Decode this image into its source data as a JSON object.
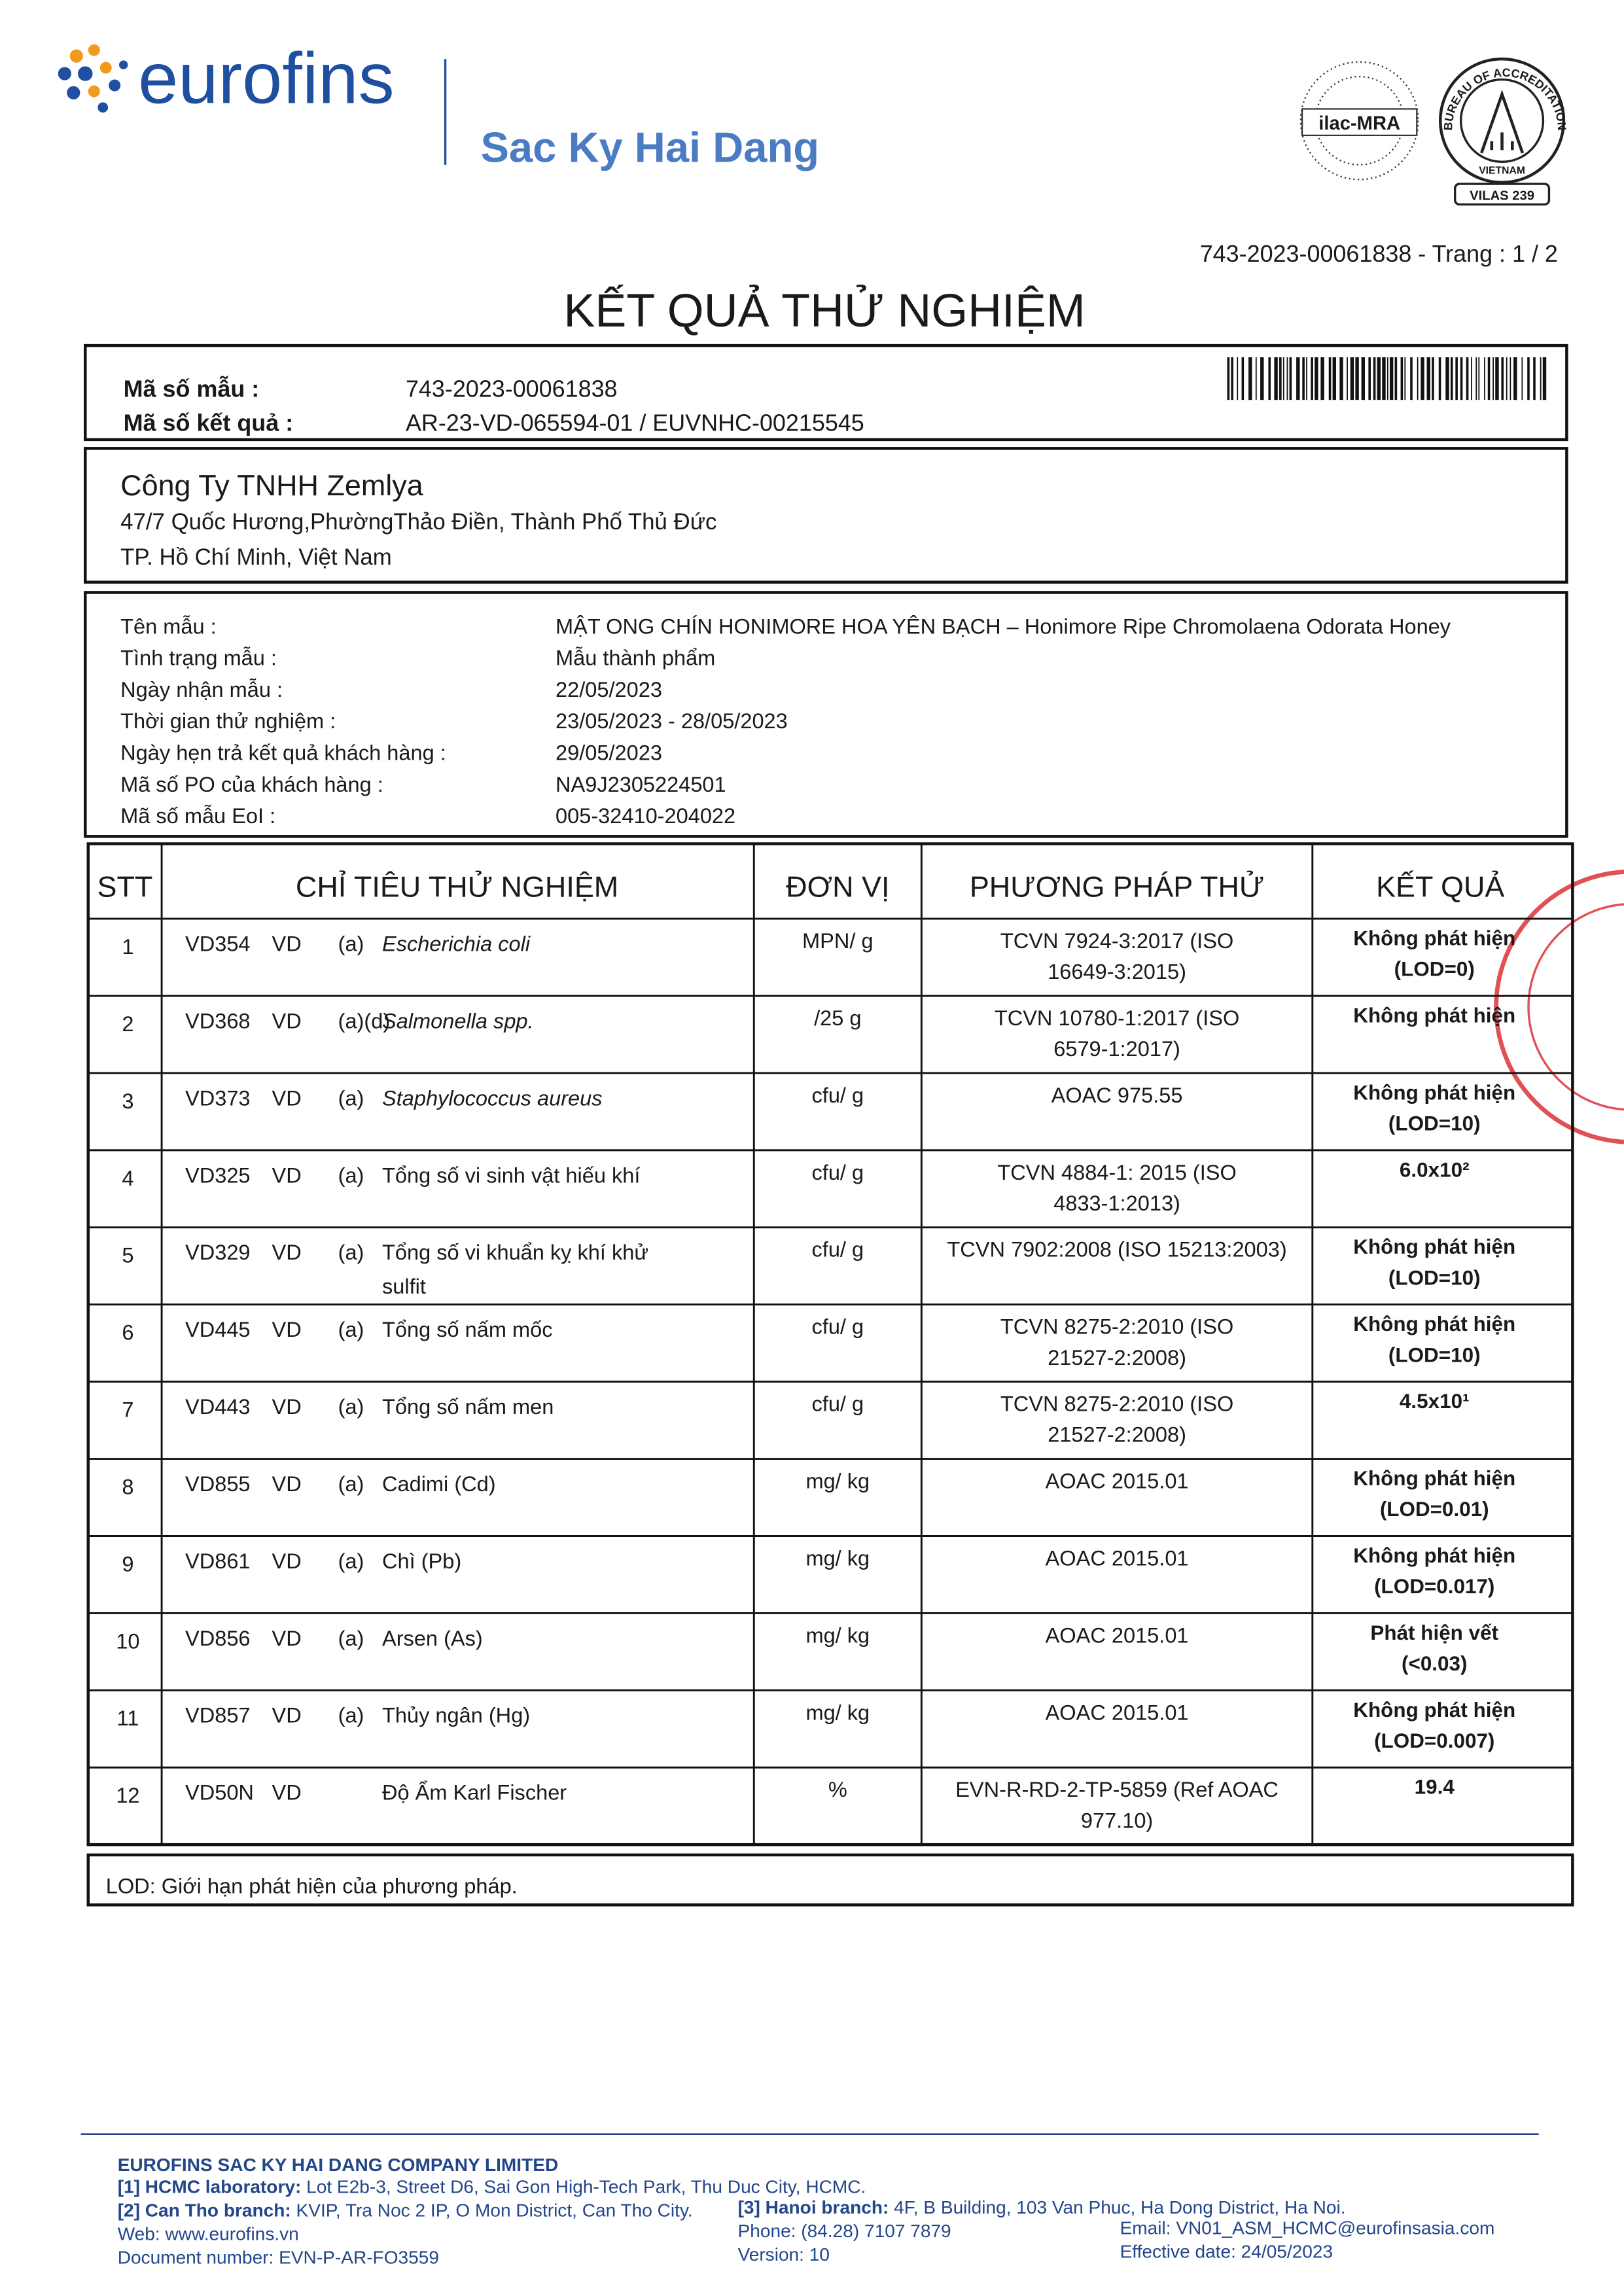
{
  "header": {
    "brand": "eurofins",
    "subsidiary": "Sac Ky Hai Dang",
    "ilac": "ilac-MRA",
    "bureau": "BUREAU OF ACCREDITATION",
    "country": "VIETNAM",
    "vilas": "VILAS 239"
  },
  "report_ref": "743-2023-00061838 - Trang : 1 / 2",
  "title": "KẾT QUẢ THỬ NGHIỆM",
  "ids": [
    {
      "label": "Mã số mẫu :",
      "value": "743-2023-00061838"
    },
    {
      "label": "Mã số kết quả :",
      "value": "AR-23-VD-065594-01 / EUVNHC-00215545"
    }
  ],
  "customer": {
    "name": "Công Ty TNHH Zemlya",
    "address": [
      "47/7 Quốc Hương,PhườngThảo Điền, Thành Phố Thủ Đức",
      "TP. Hồ Chí Minh, Việt Nam"
    ]
  },
  "sample": [
    {
      "label": "Tên mẫu :",
      "value": "MẬT ONG CHÍN HONIMORE HOA YÊN BẠCH – Honimore Ripe Chromolaena Odorata Honey"
    },
    {
      "label": "Tình trạng mẫu :",
      "value": "Mẫu thành phẩm"
    },
    {
      "label": "Ngày nhận mẫu :",
      "value": "22/05/2023"
    },
    {
      "label": "Thời gian thử nghiệm :",
      "value": "23/05/2023 - 28/05/2023"
    },
    {
      "label": "Ngày hẹn trả kết quả khách hàng :",
      "value": "29/05/2023"
    },
    {
      "label": "Mã số PO của khách hàng :",
      "value": "NA9J2305224501"
    },
    {
      "label": "Mã số mẫu EoI :",
      "value": "005-32410-204022"
    }
  ],
  "table": {
    "headers": [
      "STT",
      "CHỈ TIÊU THỬ NGHIỆM",
      "ĐƠN VỊ",
      "PHƯƠNG PHÁP THỬ",
      "KẾT QUẢ"
    ],
    "rows": [
      {
        "stt": 1,
        "code": "VD354",
        "lab": "VD",
        "ref": "(a)",
        "name": [
          "Escherichia coli"
        ],
        "italic": true,
        "unit": "MPN/ g",
        "method": [
          "TCVN 7924-3:2017 (ISO",
          "16649-3:2015)"
        ],
        "result": [
          "Không phát hiện",
          "(LOD=0)"
        ]
      },
      {
        "stt": 2,
        "code": "VD368",
        "lab": "VD",
        "ref": "(a)(d)",
        "name": [
          "Salmonella spp."
        ],
        "italic": true,
        "unit": "/25 g",
        "method": [
          "TCVN 10780-1:2017 (ISO",
          "6579-1:2017)"
        ],
        "result": [
          "Không phát hiện"
        ]
      },
      {
        "stt": 3,
        "code": "VD373",
        "lab": "VD",
        "ref": "(a)",
        "name": [
          "Staphylococcus aureus"
        ],
        "italic": true,
        "unit": "cfu/ g",
        "method": [
          "AOAC 975.55"
        ],
        "result": [
          "Không phát hiện",
          "(LOD=10)"
        ]
      },
      {
        "stt": 4,
        "code": "VD325",
        "lab": "VD",
        "ref": "(a)",
        "name": [
          "Tổng số vi sinh vật hiếu khí"
        ],
        "italic": false,
        "unit": "cfu/ g",
        "method": [
          "TCVN 4884-1: 2015 (ISO",
          "4833-1:2013)"
        ],
        "result": [
          "6.0x10²"
        ]
      },
      {
        "stt": 5,
        "code": "VD329",
        "lab": "VD",
        "ref": "(a)",
        "name": [
          "Tổng số vi khuẩn kỵ khí khử",
          "sulfit"
        ],
        "italic": false,
        "unit": "cfu/ g",
        "method": [
          "TCVN 7902:2008 (ISO 15213:2003)"
        ],
        "result": [
          "Không phát hiện",
          "(LOD=10)"
        ]
      },
      {
        "stt": 6,
        "code": "VD445",
        "lab": "VD",
        "ref": "(a)",
        "name": [
          "Tổng số nấm mốc"
        ],
        "italic": false,
        "unit": "cfu/ g",
        "method": [
          "TCVN 8275-2:2010 (ISO",
          "21527-2:2008)"
        ],
        "result": [
          "Không phát hiện",
          "(LOD=10)"
        ]
      },
      {
        "stt": 7,
        "code": "VD443",
        "lab": "VD",
        "ref": "(a)",
        "name": [
          "Tổng số nấm men"
        ],
        "italic": false,
        "unit": "cfu/ g",
        "method": [
          "TCVN 8275-2:2010 (ISO",
          "21527-2:2008)"
        ],
        "result": [
          "4.5x10¹"
        ]
      },
      {
        "stt": 8,
        "code": "VD855",
        "lab": "VD",
        "ref": "(a)",
        "name": [
          "Cadimi (Cd)"
        ],
        "italic": false,
        "unit": "mg/ kg",
        "method": [
          "AOAC 2015.01"
        ],
        "result": [
          "Không phát hiện",
          "(LOD=0.01)"
        ]
      },
      {
        "stt": 9,
        "code": "VD861",
        "lab": "VD",
        "ref": "(a)",
        "name": [
          "Chì (Pb)"
        ],
        "italic": false,
        "unit": "mg/ kg",
        "method": [
          "AOAC 2015.01"
        ],
        "result": [
          "Không phát hiện",
          "(LOD=0.017)"
        ]
      },
      {
        "stt": 10,
        "code": "VD856",
        "lab": "VD",
        "ref": "(a)",
        "name": [
          "Arsen (As)"
        ],
        "italic": false,
        "unit": "mg/ kg",
        "method": [
          "AOAC 2015.01"
        ],
        "result": [
          "Phát hiện vết",
          "(<0.03)"
        ]
      },
      {
        "stt": 11,
        "code": "VD857",
        "lab": "VD",
        "ref": "(a)",
        "name": [
          "Thủy ngân (Hg)"
        ],
        "italic": false,
        "unit": "mg/ kg",
        "method": [
          "AOAC 2015.01"
        ],
        "result": [
          "Không phát hiện",
          "(LOD=0.007)"
        ]
      },
      {
        "stt": 12,
        "code": "VD50N",
        "lab": "VD",
        "name": [
          "Độ Ẩm Karl Fischer"
        ],
        "italic": false,
        "unit": "%",
        "method": [
          "EVN-R-RD-2-TP-5859 (Ref AOAC",
          "977.10)"
        ],
        "result": [
          "19.4"
        ]
      }
    ]
  },
  "note": "LOD: Giới hạn phát hiện của phương pháp.",
  "footer": {
    "company": "EUROFINS SAC KY HAI DANG COMPANY LIMITED",
    "hcmc": {
      "label": "[1] HCMC laboratory:",
      "text": "Lot E2b-3, Street D6, Sai Gon High-Tech Park, Thu Duc City, HCMC."
    },
    "cantho": {
      "label": "[2] Can Tho branch:",
      "text": "KVIP, Tra Noc 2 IP, O Mon District, Can Tho City."
    },
    "hanoi": {
      "label": "[3] Hanoi branch:",
      "text": "4F, B Building, 103 Van Phuc, Ha Dong District, Ha Noi."
    },
    "web": "Web: www.eurofins.vn",
    "phone": "Phone: (84.28) 7107 7879",
    "email": "Email: VN01_ASM_HCMC@eurofinsasia.com",
    "document": "Document number: EVN-P-AR-FO3559",
    "version": "Version: 10",
    "effective": "Effective date: 24/05/2023"
  }
}
